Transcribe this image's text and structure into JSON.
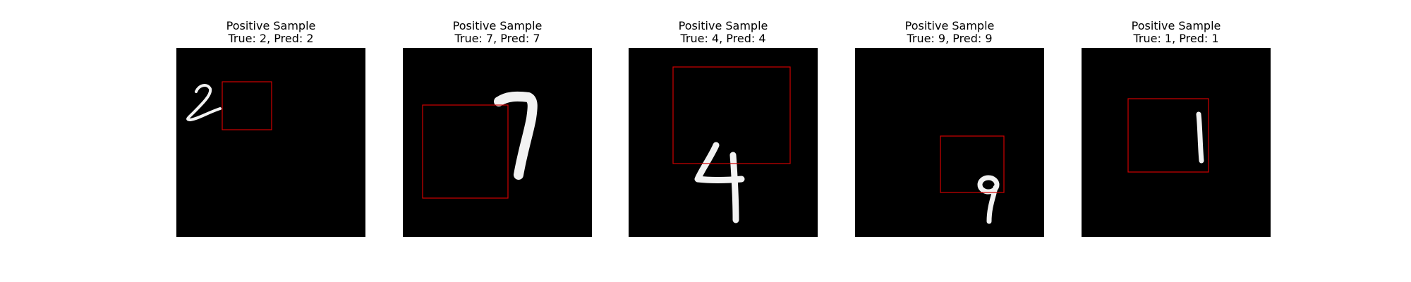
{
  "panels": [
    {
      "title": "Positive Sample",
      "subtitle": "True: 2, Pred: 2",
      "digit": "2",
      "box_color": "#d00000"
    },
    {
      "title": "Positive Sample",
      "subtitle": "True: 7, Pred: 7",
      "digit": "7",
      "box_color": "#d00000"
    },
    {
      "title": "Positive Sample",
      "subtitle": "True: 4, Pred: 4",
      "digit": "4",
      "box_color": "#d00000"
    },
    {
      "title": "Positive Sample",
      "subtitle": "True: 9, Pred: 9",
      "digit": "9",
      "box_color": "#d00000"
    },
    {
      "title": "Positive Sample",
      "subtitle": "True: 1, Pred: 1",
      "digit": "1",
      "box_color": "#d00000"
    }
  ]
}
